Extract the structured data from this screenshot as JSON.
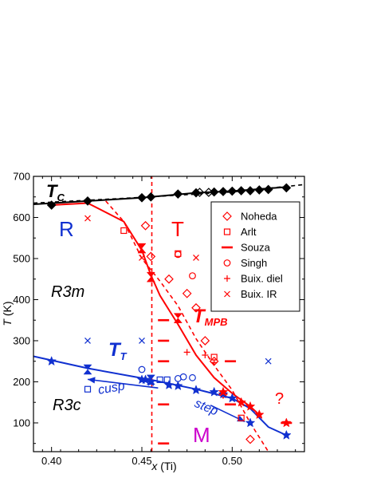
{
  "chart_data": {
    "type": "scatter",
    "xlabel_main": "x",
    "xlabel_unit": "(Ti)",
    "ylabel_main": "T",
    "ylabel_unit": "(K)",
    "xlim": [
      0.39,
      0.54
    ],
    "ylim": [
      30,
      700
    ],
    "xticks": [
      "0.40",
      "0.45",
      "0.50"
    ],
    "xtick_values": [
      0.4,
      0.45,
      0.5
    ],
    "yticks": [
      "100",
      "200",
      "300",
      "400",
      "500",
      "600",
      "700"
    ],
    "ytick_values": [
      100,
      200,
      300,
      400,
      500,
      600,
      700
    ],
    "grid": false,
    "legend_position": "top-right",
    "colors": {
      "red": "#ff0000",
      "blue": "#1030d0",
      "black": "#000000",
      "magenta": "#cc00cc"
    },
    "legend": [
      {
        "label": "Noheda",
        "marker": "diamond-open"
      },
      {
        "label": "Arlt",
        "marker": "square-open"
      },
      {
        "label": "Souza",
        "marker": "dash"
      },
      {
        "label": "Singh",
        "marker": "circle-open"
      },
      {
        "label": "Buix. diel",
        "marker": "plus"
      },
      {
        "label": "Buix. IR",
        "marker": "cross"
      }
    ],
    "annotations": {
      "tc_main": "T",
      "tc_sub": "C",
      "r": "R",
      "t": "T",
      "r3m": "R3m",
      "r3c": "R3c",
      "tmpb_main": "T",
      "tmpb_sub": "MPB",
      "tt_main": "T",
      "tt_sub": "T",
      "cusp": "cusp",
      "step": "step",
      "m": "M",
      "q": "?"
    },
    "series": [
      {
        "marker": "diamond-open",
        "color": "red",
        "x": [
          0.452,
          0.455,
          0.465,
          0.475,
          0.48,
          0.485,
          0.49,
          0.495,
          0.51
        ],
        "y": [
          580,
          505,
          450,
          415,
          380,
          300,
          250,
          170,
          60
        ]
      },
      {
        "marker": "square-open",
        "color": "red",
        "x": [
          0.44,
          0.47,
          0.49,
          0.505
        ],
        "y": [
          568,
          512,
          260,
          112
        ]
      },
      {
        "marker": "circle-open",
        "color": "red",
        "x": [
          0.47,
          0.478
        ],
        "y": [
          510,
          458
        ]
      },
      {
        "marker": "plus",
        "color": "red",
        "x": [
          0.475,
          0.485,
          0.49
        ],
        "y": [
          272,
          265,
          247
        ]
      },
      {
        "marker": "cross",
        "color": "red",
        "x": [
          0.42,
          0.45,
          0.48
        ],
        "y": [
          598,
          502,
          502
        ]
      },
      {
        "marker": "cross",
        "color": "blue",
        "x": [
          0.42,
          0.45,
          0.52
        ],
        "y": [
          300,
          300,
          250
        ]
      },
      {
        "marker": "square-open",
        "color": "blue",
        "x": [
          0.42,
          0.46,
          0.464
        ],
        "y": [
          182,
          205,
          205
        ]
      },
      {
        "marker": "circle-open",
        "color": "blue",
        "x": [
          0.45,
          0.47,
          0.473,
          0.478
        ],
        "y": [
          230,
          208,
          212,
          210
        ]
      },
      {
        "marker": "dash",
        "color": "red",
        "x": [
          0.462,
          0.462,
          0.462,
          0.462,
          0.462,
          0.462,
          0.499,
          0.499
        ],
        "y": [
          350,
          300,
          250,
          145,
          50,
          0,
          145,
          250
        ]
      },
      {
        "marker": "star-filled",
        "color": "blue",
        "x": [
          0.4,
          0.45,
          0.452,
          0.455,
          0.465,
          0.47,
          0.48,
          0.49,
          0.495,
          0.5,
          0.51,
          0.53
        ],
        "y": [
          250,
          205,
          205,
          200,
          192,
          190,
          180,
          175,
          170,
          160,
          100,
          70
        ]
      },
      {
        "marker": "star-filled",
        "color": "red",
        "x": [
          0.495,
          0.505,
          0.51,
          0.515,
          0.53
        ],
        "y": [
          175,
          150,
          140,
          120,
          100
        ]
      },
      {
        "marker": "hourglass-filled",
        "color": "red",
        "x": [
          0.45,
          0.455,
          0.47
        ],
        "y": [
          525,
          455,
          355
        ]
      },
      {
        "marker": "hourglass-filled",
        "color": "blue",
        "x": [
          0.42,
          0.455
        ],
        "y": [
          230,
          205
        ]
      },
      {
        "marker": "diamond-filled",
        "color": "black",
        "x": [
          0.4,
          0.42,
          0.45,
          0.455,
          0.47,
          0.48,
          0.49,
          0.495,
          0.5,
          0.505,
          0.51,
          0.515,
          0.52,
          0.53
        ],
        "y": [
          630,
          640,
          648,
          650,
          657,
          660,
          662,
          663,
          664,
          665,
          665,
          667,
          668,
          672
        ]
      },
      {
        "marker": "diamond-open",
        "color": "black",
        "x": [
          0.482,
          0.487
        ],
        "y": [
          661,
          661
        ]
      },
      {
        "marker": "dash",
        "color": "red",
        "x": [
          0.53
        ],
        "y": [
          100
        ]
      }
    ],
    "curves": [
      {
        "name": "",
        "color": "black",
        "style": "solid",
        "x": [
          0.39,
          0.42,
          0.45,
          0.48,
          0.5,
          0.53
        ],
        "y": [
          632,
          640,
          648,
          660,
          664,
          674
        ]
      },
      {
        "name": "",
        "color": "black",
        "style": "dashed",
        "x": [
          0.39,
          0.45,
          0.5,
          0.54
        ],
        "y": [
          635,
          649,
          662,
          680
        ]
      },
      {
        "name": "",
        "color": "red",
        "style": "solid",
        "x": [
          0.4,
          0.42,
          0.44,
          0.45,
          0.455,
          0.46,
          0.465,
          0.47,
          0.48,
          0.49,
          0.5,
          0.51,
          0.515
        ],
        "y": [
          630,
          635,
          590,
          520,
          460,
          410,
          375,
          340,
          265,
          210,
          172,
          140,
          120
        ]
      },
      {
        "name": "",
        "color": "red",
        "style": "dashed",
        "x": [
          0.43,
          0.44,
          0.45,
          0.46,
          0.47,
          0.48,
          0.49,
          0.5,
          0.51,
          0.52
        ],
        "y": [
          640,
          590,
          500,
          445,
          385,
          305,
          240,
          180,
          100,
          30
        ]
      },
      {
        "name": "",
        "color": "blue",
        "style": "solid",
        "x": [
          0.39,
          0.42,
          0.455,
          0.48,
          0.5,
          0.51,
          0.52,
          0.53
        ],
        "y": [
          262,
          233,
          205,
          182,
          160,
          135,
          90,
          70
        ]
      },
      {
        "name": "",
        "color": "red",
        "style": "dashed",
        "x": [
          0.4555,
          0.4555
        ],
        "y": [
          30,
          700
        ]
      }
    ],
    "arrows": [
      {
        "color": "blue",
        "x": [
          0.459,
          0.42
        ],
        "y": [
          185,
          206
        ]
      },
      {
        "color": "blue",
        "x": [
          0.488,
          0.507
        ],
        "y": [
          143,
          103
        ]
      }
    ]
  }
}
